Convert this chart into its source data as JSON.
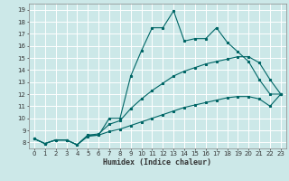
{
  "title": "",
  "xlabel": "Humidex (Indice chaleur)",
  "bg_color": "#cce8e8",
  "grid_color": "#ffffff",
  "line_color": "#006666",
  "xlim": [
    -0.5,
    23.5
  ],
  "ylim": [
    7.5,
    19.5
  ],
  "xticks": [
    0,
    1,
    2,
    3,
    4,
    5,
    6,
    7,
    8,
    9,
    10,
    11,
    12,
    13,
    14,
    15,
    16,
    17,
    18,
    19,
    20,
    21,
    22,
    23
  ],
  "yticks": [
    8,
    9,
    10,
    11,
    12,
    13,
    14,
    15,
    16,
    17,
    18,
    19
  ],
  "line1_x": [
    0,
    1,
    2,
    3,
    4,
    5,
    6,
    7,
    8,
    9,
    10,
    11,
    12,
    13,
    14,
    15,
    16,
    17,
    18,
    19,
    20,
    21,
    22,
    23
  ],
  "line1_y": [
    8.3,
    7.9,
    8.2,
    8.2,
    7.8,
    8.6,
    8.6,
    10.0,
    10.0,
    13.5,
    15.6,
    17.5,
    17.5,
    18.9,
    16.4,
    16.6,
    16.6,
    17.5,
    16.3,
    15.5,
    14.7,
    13.2,
    12.0,
    12.0
  ],
  "line2_x": [
    0,
    1,
    2,
    3,
    4,
    5,
    6,
    7,
    8,
    9,
    10,
    11,
    12,
    13,
    14,
    15,
    16,
    17,
    18,
    19,
    20,
    21,
    22,
    23
  ],
  "line2_y": [
    8.3,
    7.9,
    8.2,
    8.2,
    7.8,
    8.6,
    8.7,
    9.5,
    9.8,
    10.8,
    11.6,
    12.3,
    12.9,
    13.5,
    13.9,
    14.2,
    14.5,
    14.7,
    14.9,
    15.1,
    15.1,
    14.6,
    13.2,
    12.0
  ],
  "line3_x": [
    0,
    1,
    2,
    3,
    4,
    5,
    6,
    7,
    8,
    9,
    10,
    11,
    12,
    13,
    14,
    15,
    16,
    17,
    18,
    19,
    20,
    21,
    22,
    23
  ],
  "line3_y": [
    8.3,
    7.9,
    8.2,
    8.2,
    7.8,
    8.5,
    8.6,
    8.9,
    9.1,
    9.4,
    9.7,
    10.0,
    10.3,
    10.6,
    10.9,
    11.1,
    11.3,
    11.5,
    11.7,
    11.8,
    11.8,
    11.6,
    11.0,
    12.0
  ],
  "tick_fontsize": 5,
  "xlabel_fontsize": 6,
  "lw": 0.8,
  "ms": 2.0
}
